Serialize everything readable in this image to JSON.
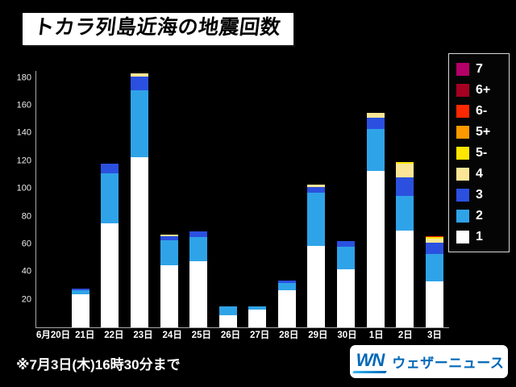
{
  "title": "トカラ列島近海の地震回数",
  "footnote": "※7月3日(木)16時30分まで",
  "logo": {
    "wn": "WN",
    "text": "ウェザーニュース",
    "color": "#0068b7"
  },
  "chart_data": {
    "type": "bar",
    "stacked": true,
    "title": "トカラ列島近海の地震回数",
    "xlabel": "",
    "ylabel": "",
    "ylim": [
      0,
      185
    ],
    "yticks": [
      20,
      40,
      60,
      80,
      100,
      120,
      140,
      160,
      180
    ],
    "grid": false,
    "legend_position": "right",
    "categories": [
      "6月20日",
      "21日",
      "22日",
      "23日",
      "24日",
      "25日",
      "26日",
      "27日",
      "28日",
      "29日",
      "30日",
      "1日",
      "2日",
      "3日"
    ],
    "series": [
      {
        "name": "1",
        "color": "#ffffff",
        "values": [
          0,
          24,
          75,
          123,
          45,
          48,
          9,
          13,
          27,
          59,
          42,
          113,
          70,
          33
        ]
      },
      {
        "name": "2",
        "color": "#2fa3e8",
        "values": [
          0,
          3,
          36,
          48,
          18,
          17,
          6,
          2,
          5,
          38,
          16,
          30,
          25,
          20
        ]
      },
      {
        "name": "3",
        "color": "#2b50e0",
        "values": [
          0,
          1,
          7,
          10,
          3,
          4,
          0,
          0,
          2,
          4,
          4,
          8,
          13,
          8
        ]
      },
      {
        "name": "4",
        "color": "#fae696",
        "values": [
          0,
          0,
          0,
          2,
          1,
          0,
          0,
          0,
          0,
          2,
          0,
          4,
          10,
          3
        ]
      },
      {
        "name": "5-",
        "color": "#ffe600",
        "values": [
          0,
          0,
          0,
          0,
          0,
          0,
          0,
          0,
          0,
          0,
          0,
          0,
          1,
          1
        ]
      },
      {
        "name": "5+",
        "color": "#ff9900",
        "values": [
          0,
          0,
          0,
          0,
          0,
          0,
          0,
          0,
          0,
          0,
          0,
          0,
          0,
          0
        ]
      },
      {
        "name": "6-",
        "color": "#ff2800",
        "values": [
          0,
          0,
          0,
          0,
          0,
          0,
          0,
          0,
          0,
          0,
          0,
          0,
          0,
          1
        ]
      },
      {
        "name": "6+",
        "color": "#a50021",
        "values": [
          0,
          0,
          0,
          0,
          0,
          0,
          0,
          0,
          0,
          0,
          0,
          0,
          0,
          0
        ]
      },
      {
        "name": "7",
        "color": "#b40068",
        "values": [
          0,
          0,
          0,
          0,
          0,
          0,
          0,
          0,
          0,
          0,
          0,
          0,
          0,
          0
        ]
      }
    ],
    "legend": [
      {
        "label": "7",
        "color": "#b40068"
      },
      {
        "label": "6+",
        "color": "#a50021"
      },
      {
        "label": "6-",
        "color": "#ff2800"
      },
      {
        "label": "5+",
        "color": "#ff9900"
      },
      {
        "label": "5-",
        "color": "#ffe600"
      },
      {
        "label": "4",
        "color": "#fae696"
      },
      {
        "label": "3",
        "color": "#2b50e0"
      },
      {
        "label": "2",
        "color": "#2fa3e8"
      },
      {
        "label": "1",
        "color": "#ffffff"
      }
    ]
  }
}
